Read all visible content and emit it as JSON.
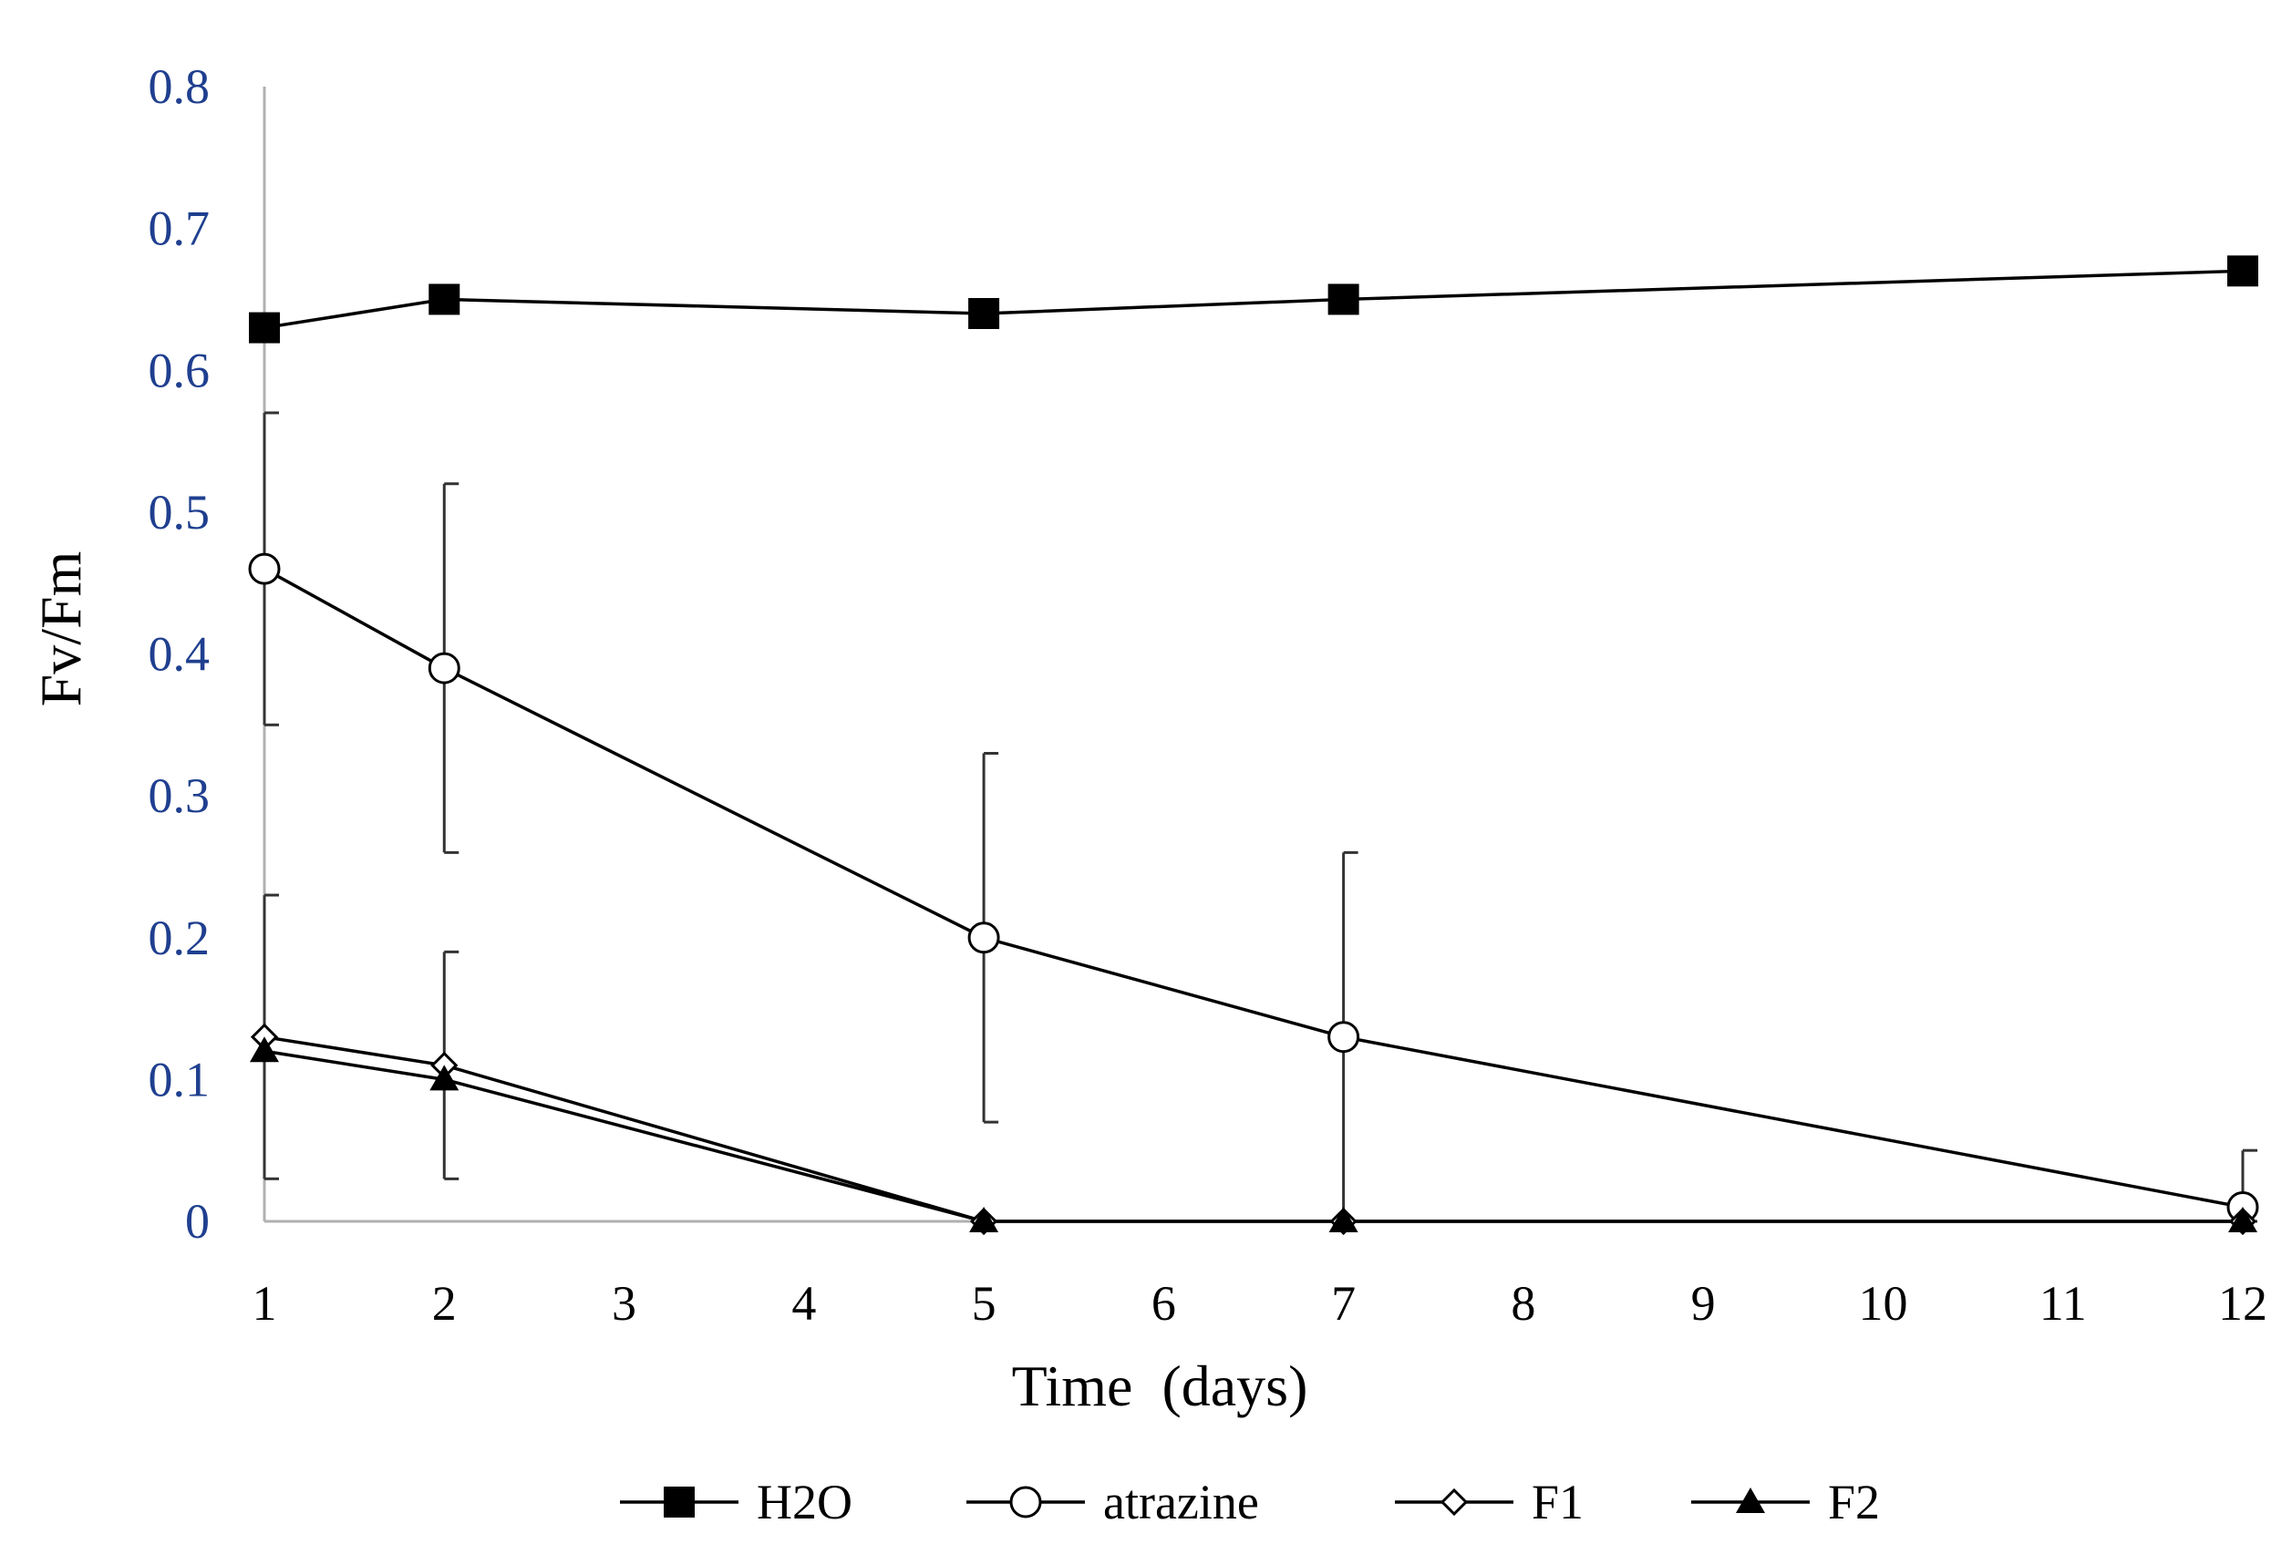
{
  "chart_data": {
    "type": "line",
    "title": "",
    "xlabel": "Time  (days)",
    "ylabel": "Fv/Fm",
    "ylim": [
      0,
      0.8
    ],
    "yticks": [
      "0",
      "0.1",
      "0.2",
      "0.3",
      "0.4",
      "0.5",
      "0.6",
      "0.7",
      "0.8"
    ],
    "categories": [
      "1",
      "2",
      "3",
      "4",
      "5",
      "6",
      "7",
      "8",
      "9",
      "10",
      "11",
      "12"
    ],
    "grid": false,
    "legend_position": "bottom",
    "series": [
      {
        "name": "H2O",
        "marker": "filled-square",
        "x": [
          "1",
          "2",
          "5",
          "7",
          "12"
        ],
        "values": [
          0.63,
          0.65,
          0.64,
          0.65,
          0.67
        ],
        "error": [
          null,
          null,
          null,
          null,
          null
        ]
      },
      {
        "name": "atrazine",
        "marker": "open-circle",
        "x": [
          "1",
          "2",
          "5",
          "7",
          "12"
        ],
        "values": [
          0.46,
          0.39,
          0.2,
          0.13,
          0.01
        ],
        "error": [
          0.11,
          0.13,
          0.13,
          0.13,
          0.04
        ]
      },
      {
        "name": "F1",
        "marker": "open-diamond",
        "x": [
          "1",
          "2",
          "5",
          "7",
          "12"
        ],
        "values": [
          0.13,
          0.11,
          0.0,
          0.0,
          0.0
        ],
        "error": [
          0.1,
          0.08,
          null,
          null,
          null
        ]
      },
      {
        "name": "F2",
        "marker": "filled-triangle",
        "x": [
          "1",
          "2",
          "5",
          "7",
          "12"
        ],
        "values": [
          0.12,
          0.1,
          0.0,
          0.0,
          0.0
        ],
        "error": [
          null,
          null,
          null,
          null,
          null
        ]
      }
    ]
  },
  "colors": {
    "line": "#000000",
    "axis": "#b0b0b0",
    "ytick_text": "#1f3f8f",
    "errorbar": "#333333"
  }
}
